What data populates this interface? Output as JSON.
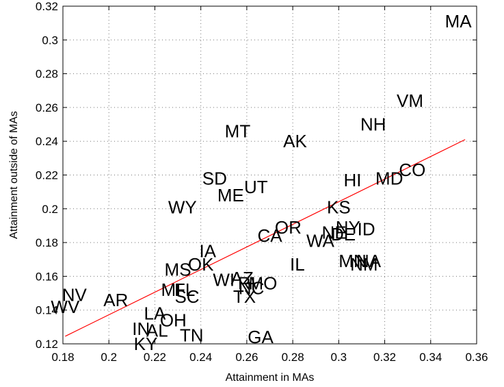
{
  "chart_data": {
    "type": "scatter",
    "title": "",
    "xlabel": "Attainment in MAs",
    "ylabel": "Attainment outside of MAs",
    "xlim": [
      0.18,
      0.36
    ],
    "ylim": [
      0.12,
      0.32
    ],
    "grid": true,
    "x_ticks": [
      0.18,
      0.2,
      0.22,
      0.24,
      0.26,
      0.28,
      0.3,
      0.32,
      0.34,
      0.36
    ],
    "y_ticks": [
      0.12,
      0.14,
      0.16,
      0.18,
      0.2,
      0.22,
      0.24,
      0.26,
      0.28,
      0.3,
      0.32
    ],
    "x_tick_labels": [
      "0.18",
      "0.2",
      "0.22",
      "0.24",
      "0.26",
      "0.28",
      "0.3",
      "0.32",
      "0.34",
      "0.36"
    ],
    "y_tick_labels": [
      "0.12",
      "0.14",
      "0.16",
      "0.18",
      "0.2",
      "0.22",
      "0.24",
      "0.26",
      "0.28",
      "0.3",
      "0.32"
    ],
    "fit_line": {
      "color": "#ff0000",
      "x": [
        0.181,
        0.355
      ],
      "y": [
        0.1245,
        0.241
      ]
    },
    "points": [
      {
        "label": "MA",
        "x": 0.352,
        "y": 0.311
      },
      {
        "label": "VM",
        "x": 0.331,
        "y": 0.264
      },
      {
        "label": "NH",
        "x": 0.315,
        "y": 0.25
      },
      {
        "label": "CO",
        "x": 0.332,
        "y": 0.223
      },
      {
        "label": "MD",
        "x": 0.322,
        "y": 0.218
      },
      {
        "label": "HI",
        "x": 0.306,
        "y": 0.217
      },
      {
        "label": "MT",
        "x": 0.256,
        "y": 0.246
      },
      {
        "label": "AK",
        "x": 0.281,
        "y": 0.24
      },
      {
        "label": "SD",
        "x": 0.246,
        "y": 0.218
      },
      {
        "label": "UT",
        "x": 0.264,
        "y": 0.213
      },
      {
        "label": "ME",
        "x": 0.253,
        "y": 0.208
      },
      {
        "label": "WY",
        "x": 0.232,
        "y": 0.201
      },
      {
        "label": "KS",
        "x": 0.3,
        "y": 0.201
      },
      {
        "label": "OR",
        "x": 0.278,
        "y": 0.189
      },
      {
        "label": "CA",
        "x": 0.27,
        "y": 0.184
      },
      {
        "label": "ID",
        "x": 0.312,
        "y": 0.188
      },
      {
        "label": "NY",
        "x": 0.304,
        "y": 0.189
      },
      {
        "label": "NE",
        "x": 0.298,
        "y": 0.186
      },
      {
        "label": "DE",
        "x": 0.302,
        "y": 0.185
      },
      {
        "label": "WA",
        "x": 0.292,
        "y": 0.181
      },
      {
        "label": "IA",
        "x": 0.243,
        "y": 0.175
      },
      {
        "label": "IL",
        "x": 0.282,
        "y": 0.167
      },
      {
        "label": "MN",
        "x": 0.306,
        "y": 0.169
      },
      {
        "label": "NA",
        "x": 0.313,
        "y": 0.169
      },
      {
        "label": "NM",
        "x": 0.311,
        "y": 0.167
      },
      {
        "label": "OK",
        "x": 0.24,
        "y": 0.167
      },
      {
        "label": "MS",
        "x": 0.23,
        "y": 0.164
      },
      {
        "label": "WI",
        "x": 0.25,
        "y": 0.158
      },
      {
        "label": "AZ",
        "x": 0.258,
        "y": 0.159
      },
      {
        "label": "RI",
        "x": 0.26,
        "y": 0.156
      },
      {
        "label": "MO",
        "x": 0.267,
        "y": 0.156
      },
      {
        "label": "NC",
        "x": 0.262,
        "y": 0.153
      },
      {
        "label": "MI",
        "x": 0.227,
        "y": 0.152
      },
      {
        "label": "FL",
        "x": 0.233,
        "y": 0.152
      },
      {
        "label": "SC",
        "x": 0.234,
        "y": 0.148
      },
      {
        "label": "TX",
        "x": 0.259,
        "y": 0.148
      },
      {
        "label": "NV",
        "x": 0.185,
        "y": 0.149
      },
      {
        "label": "AR",
        "x": 0.203,
        "y": 0.146
      },
      {
        "label": "WV",
        "x": 0.181,
        "y": 0.142
      },
      {
        "label": "LA",
        "x": 0.22,
        "y": 0.138
      },
      {
        "label": "OH",
        "x": 0.228,
        "y": 0.134
      },
      {
        "label": "IN",
        "x": 0.214,
        "y": 0.129
      },
      {
        "label": "AL",
        "x": 0.221,
        "y": 0.128
      },
      {
        "label": "TN",
        "x": 0.236,
        "y": 0.125
      },
      {
        "label": "KY",
        "x": 0.216,
        "y": 0.12
      },
      {
        "label": "GA",
        "x": 0.266,
        "y": 0.124
      }
    ]
  }
}
